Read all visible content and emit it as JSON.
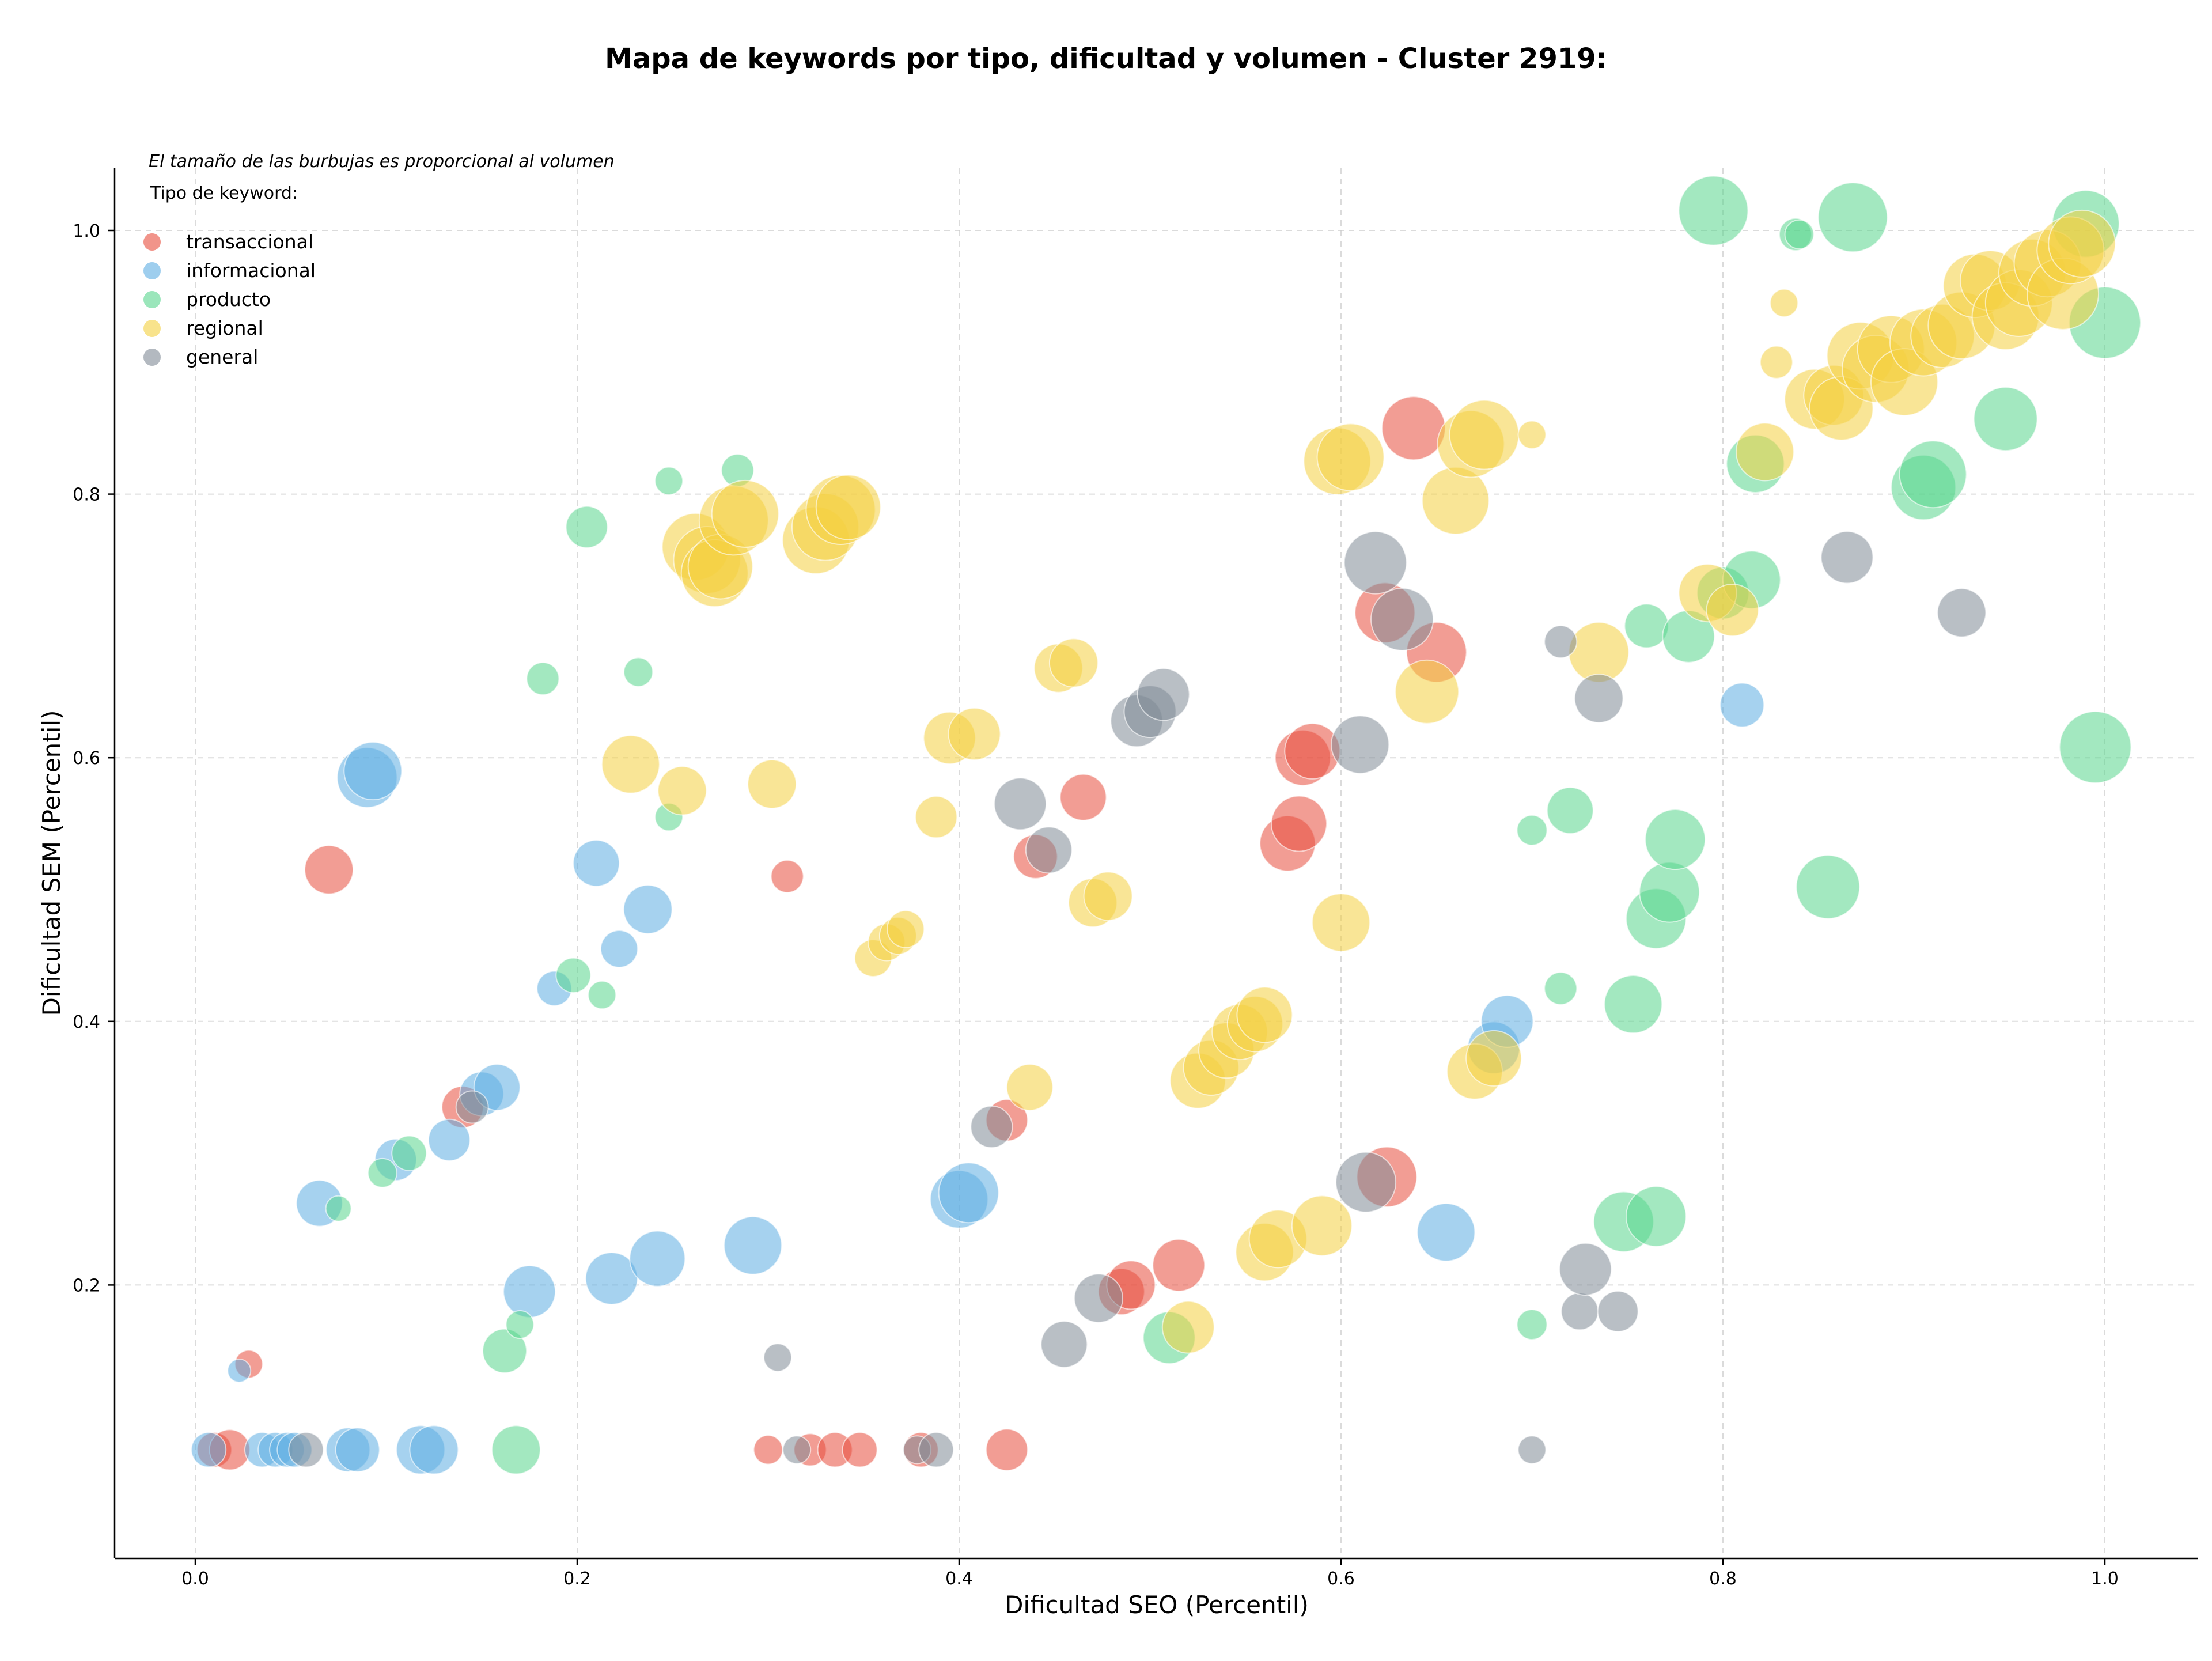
{
  "chart_data": {
    "type": "scatter",
    "title": "Mapa de keywords por tipo, dificultad y volumen - Cluster 2919:",
    "xlabel": "Dificultad SEO (Percentil)",
    "ylabel": "Dificultad SEM (Percentil)",
    "xlim": [
      -0.04,
      1.05
    ],
    "ylim": [
      0.03,
      1.05
    ],
    "xticks": [
      0.0,
      0.2,
      0.4,
      0.6,
      0.8,
      1.0
    ],
    "yticks": [
      0.2,
      0.4,
      0.6,
      0.8,
      1.0
    ],
    "xtick_labels": [
      "0.0",
      "0.2",
      "0.4",
      "0.6",
      "0.8",
      "1.0"
    ],
    "ytick_labels": [
      "0.2",
      "0.4",
      "0.6",
      "0.8",
      "1.0"
    ],
    "grid": true,
    "annotation": "El tamaño de las burbujas es proporcional al volumen",
    "legend_title": "Tipo de keyword:",
    "legend_position": "top-left",
    "series": [
      {
        "name": "transaccional",
        "color": "#e74c3c",
        "points": [
          [
            0.01,
            0.075,
            30
          ],
          [
            0.018,
            0.075,
            35
          ],
          [
            0.028,
            0.14,
            24
          ],
          [
            0.07,
            0.515,
            42
          ],
          [
            0.14,
            0.335,
            36
          ],
          [
            0.31,
            0.51,
            28
          ],
          [
            0.3,
            0.075,
            25
          ],
          [
            0.322,
            0.075,
            28
          ],
          [
            0.335,
            0.075,
            30
          ],
          [
            0.348,
            0.075,
            30
          ],
          [
            0.38,
            0.075,
            30
          ],
          [
            0.425,
            0.325,
            36
          ],
          [
            0.425,
            0.075,
            36
          ],
          [
            0.44,
            0.525,
            38
          ],
          [
            0.465,
            0.57,
            40
          ],
          [
            0.485,
            0.195,
            40
          ],
          [
            0.49,
            0.2,
            42
          ],
          [
            0.515,
            0.215,
            45
          ],
          [
            0.572,
            0.535,
            48
          ],
          [
            0.578,
            0.55,
            48
          ],
          [
            0.58,
            0.6,
            48
          ],
          [
            0.585,
            0.605,
            48
          ],
          [
            0.623,
            0.71,
            52
          ],
          [
            0.624,
            0.282,
            52
          ],
          [
            0.638,
            0.85,
            55
          ],
          [
            0.65,
            0.68,
            52
          ]
        ]
      },
      {
        "name": "informacional",
        "color": "#5dade2",
        "points": [
          [
            0.007,
            0.075,
            30
          ],
          [
            0.023,
            0.135,
            20
          ],
          [
            0.035,
            0.075,
            30
          ],
          [
            0.042,
            0.075,
            30
          ],
          [
            0.048,
            0.075,
            30
          ],
          [
            0.052,
            0.075,
            30
          ],
          [
            0.065,
            0.262,
            40
          ],
          [
            0.08,
            0.075,
            38
          ],
          [
            0.085,
            0.075,
            38
          ],
          [
            0.09,
            0.585,
            52
          ],
          [
            0.093,
            0.59,
            50
          ],
          [
            0.105,
            0.295,
            36
          ],
          [
            0.118,
            0.075,
            42
          ],
          [
            0.125,
            0.075,
            42
          ],
          [
            0.133,
            0.31,
            36
          ],
          [
            0.15,
            0.345,
            38
          ],
          [
            0.158,
            0.35,
            40
          ],
          [
            0.175,
            0.195,
            45
          ],
          [
            0.188,
            0.425,
            30
          ],
          [
            0.21,
            0.52,
            40
          ],
          [
            0.218,
            0.205,
            45
          ],
          [
            0.222,
            0.455,
            32
          ],
          [
            0.237,
            0.485,
            42
          ],
          [
            0.242,
            0.22,
            48
          ],
          [
            0.292,
            0.23,
            50
          ],
          [
            0.4,
            0.265,
            50
          ],
          [
            0.405,
            0.27,
            52
          ],
          [
            0.655,
            0.24,
            50
          ],
          [
            0.68,
            0.38,
            45
          ],
          [
            0.687,
            0.4,
            45
          ],
          [
            0.81,
            0.64,
            38
          ]
        ]
      },
      {
        "name": "producto",
        "color": "#58d68d",
        "points": [
          [
            0.075,
            0.258,
            22
          ],
          [
            0.098,
            0.285,
            25
          ],
          [
            0.112,
            0.3,
            30
          ],
          [
            0.162,
            0.15,
            38
          ],
          [
            0.168,
            0.075,
            42
          ],
          [
            0.17,
            0.17,
            24
          ],
          [
            0.182,
            0.66,
            28
          ],
          [
            0.198,
            0.435,
            30
          ],
          [
            0.205,
            0.775,
            36
          ],
          [
            0.213,
            0.42,
            24
          ],
          [
            0.232,
            0.665,
            25
          ],
          [
            0.248,
            0.555,
            24
          ],
          [
            0.248,
            0.81,
            24
          ],
          [
            0.284,
            0.818,
            28
          ],
          [
            0.51,
            0.16,
            45
          ],
          [
            0.7,
            0.17,
            26
          ],
          [
            0.7,
            0.545,
            26
          ],
          [
            0.715,
            0.425,
            28
          ],
          [
            0.72,
            0.56,
            40
          ],
          [
            0.748,
            0.248,
            52
          ],
          [
            0.753,
            0.413,
            50
          ],
          [
            0.76,
            0.7,
            38
          ],
          [
            0.765,
            0.252,
            52
          ],
          [
            0.765,
            0.478,
            52
          ],
          [
            0.772,
            0.498,
            52
          ],
          [
            0.775,
            0.538,
            52
          ],
          [
            0.782,
            0.692,
            45
          ],
          [
            0.795,
            1.015,
            60
          ],
          [
            0.8,
            0.725,
            45
          ],
          [
            0.815,
            0.735,
            50
          ],
          [
            0.817,
            0.823,
            50
          ],
          [
            0.838,
            0.997,
            28
          ],
          [
            0.84,
            0.997,
            25
          ],
          [
            0.855,
            0.502,
            55
          ],
          [
            0.868,
            1.01,
            60
          ],
          [
            0.905,
            0.805,
            56
          ],
          [
            0.91,
            0.815,
            58
          ],
          [
            0.948,
            0.857,
            55
          ],
          [
            0.99,
            1.005,
            58
          ],
          [
            0.995,
            0.608,
            62
          ],
          [
            1.0,
            0.93,
            62
          ]
        ]
      },
      {
        "name": "regional",
        "color": "#f4d03f",
        "points": [
          [
            0.228,
            0.595,
            50
          ],
          [
            0.255,
            0.575,
            42
          ],
          [
            0.262,
            0.76,
            58
          ],
          [
            0.268,
            0.75,
            58
          ],
          [
            0.272,
            0.74,
            58
          ],
          [
            0.275,
            0.745,
            56
          ],
          [
            0.282,
            0.78,
            60
          ],
          [
            0.288,
            0.785,
            58
          ],
          [
            0.302,
            0.58,
            42
          ],
          [
            0.325,
            0.765,
            58
          ],
          [
            0.33,
            0.775,
            58
          ],
          [
            0.338,
            0.788,
            60
          ],
          [
            0.342,
            0.79,
            56
          ],
          [
            0.355,
            0.448,
            32
          ],
          [
            0.362,
            0.46,
            32
          ],
          [
            0.368,
            0.465,
            32
          ],
          [
            0.372,
            0.47,
            32
          ],
          [
            0.388,
            0.555,
            36
          ],
          [
            0.395,
            0.615,
            45
          ],
          [
            0.408,
            0.618,
            45
          ],
          [
            0.437,
            0.35,
            40
          ],
          [
            0.452,
            0.668,
            42
          ],
          [
            0.46,
            0.672,
            42
          ],
          [
            0.47,
            0.49,
            42
          ],
          [
            0.478,
            0.495,
            42
          ],
          [
            0.52,
            0.168,
            45
          ],
          [
            0.525,
            0.355,
            48
          ],
          [
            0.532,
            0.365,
            48
          ],
          [
            0.54,
            0.378,
            48
          ],
          [
            0.547,
            0.392,
            48
          ],
          [
            0.555,
            0.398,
            48
          ],
          [
            0.56,
            0.405,
            48
          ],
          [
            0.56,
            0.225,
            50
          ],
          [
            0.567,
            0.235,
            50
          ],
          [
            0.59,
            0.245,
            52
          ],
          [
            0.6,
            0.475,
            50
          ],
          [
            0.598,
            0.825,
            58
          ],
          [
            0.605,
            0.828,
            58
          ],
          [
            0.645,
            0.65,
            55
          ],
          [
            0.66,
            0.795,
            58
          ],
          [
            0.668,
            0.838,
            58
          ],
          [
            0.675,
            0.845,
            60
          ],
          [
            0.67,
            0.362,
            48
          ],
          [
            0.68,
            0.372,
            48
          ],
          [
            0.7,
            0.845,
            24
          ],
          [
            0.735,
            0.68,
            52
          ],
          [
            0.792,
            0.725,
            50
          ],
          [
            0.805,
            0.712,
            45
          ],
          [
            0.822,
            0.832,
            50
          ],
          [
            0.828,
            0.9,
            28
          ],
          [
            0.832,
            0.945,
            24
          ],
          [
            0.848,
            0.872,
            52
          ],
          [
            0.858,
            0.875,
            52
          ],
          [
            0.862,
            0.865,
            55
          ],
          [
            0.872,
            0.905,
            58
          ],
          [
            0.88,
            0.895,
            58
          ],
          [
            0.888,
            0.91,
            58
          ],
          [
            0.895,
            0.885,
            58
          ],
          [
            0.905,
            0.915,
            58
          ],
          [
            0.915,
            0.92,
            55
          ],
          [
            0.925,
            0.928,
            58
          ],
          [
            0.932,
            0.958,
            55
          ],
          [
            0.94,
            0.962,
            52
          ],
          [
            0.948,
            0.935,
            58
          ],
          [
            0.955,
            0.945,
            58
          ],
          [
            0.962,
            0.968,
            58
          ],
          [
            0.97,
            0.975,
            58
          ],
          [
            0.978,
            0.952,
            62
          ],
          [
            0.982,
            0.985,
            58
          ],
          [
            0.988,
            0.99,
            58
          ]
        ]
      },
      {
        "name": "general",
        "color": "#808b96",
        "points": [
          [
            0.058,
            0.075,
            30
          ],
          [
            0.145,
            0.335,
            28
          ],
          [
            0.305,
            0.145,
            24
          ],
          [
            0.315,
            0.075,
            24
          ],
          [
            0.378,
            0.075,
            24
          ],
          [
            0.388,
            0.075,
            30
          ],
          [
            0.417,
            0.32,
            36
          ],
          [
            0.432,
            0.565,
            45
          ],
          [
            0.447,
            0.53,
            40
          ],
          [
            0.455,
            0.155,
            40
          ],
          [
            0.473,
            0.19,
            42
          ],
          [
            0.493,
            0.628,
            45
          ],
          [
            0.5,
            0.635,
            45
          ],
          [
            0.507,
            0.648,
            45
          ],
          [
            0.61,
            0.61,
            50
          ],
          [
            0.613,
            0.278,
            52
          ],
          [
            0.618,
            0.748,
            54
          ],
          [
            0.632,
            0.705,
            54
          ],
          [
            0.7,
            0.075,
            24
          ],
          [
            0.715,
            0.688,
            28
          ],
          [
            0.725,
            0.18,
            32
          ],
          [
            0.728,
            0.212,
            45
          ],
          [
            0.735,
            0.645,
            42
          ],
          [
            0.745,
            0.18,
            35
          ],
          [
            0.865,
            0.752,
            45
          ],
          [
            0.925,
            0.71,
            42
          ]
        ]
      }
    ]
  }
}
